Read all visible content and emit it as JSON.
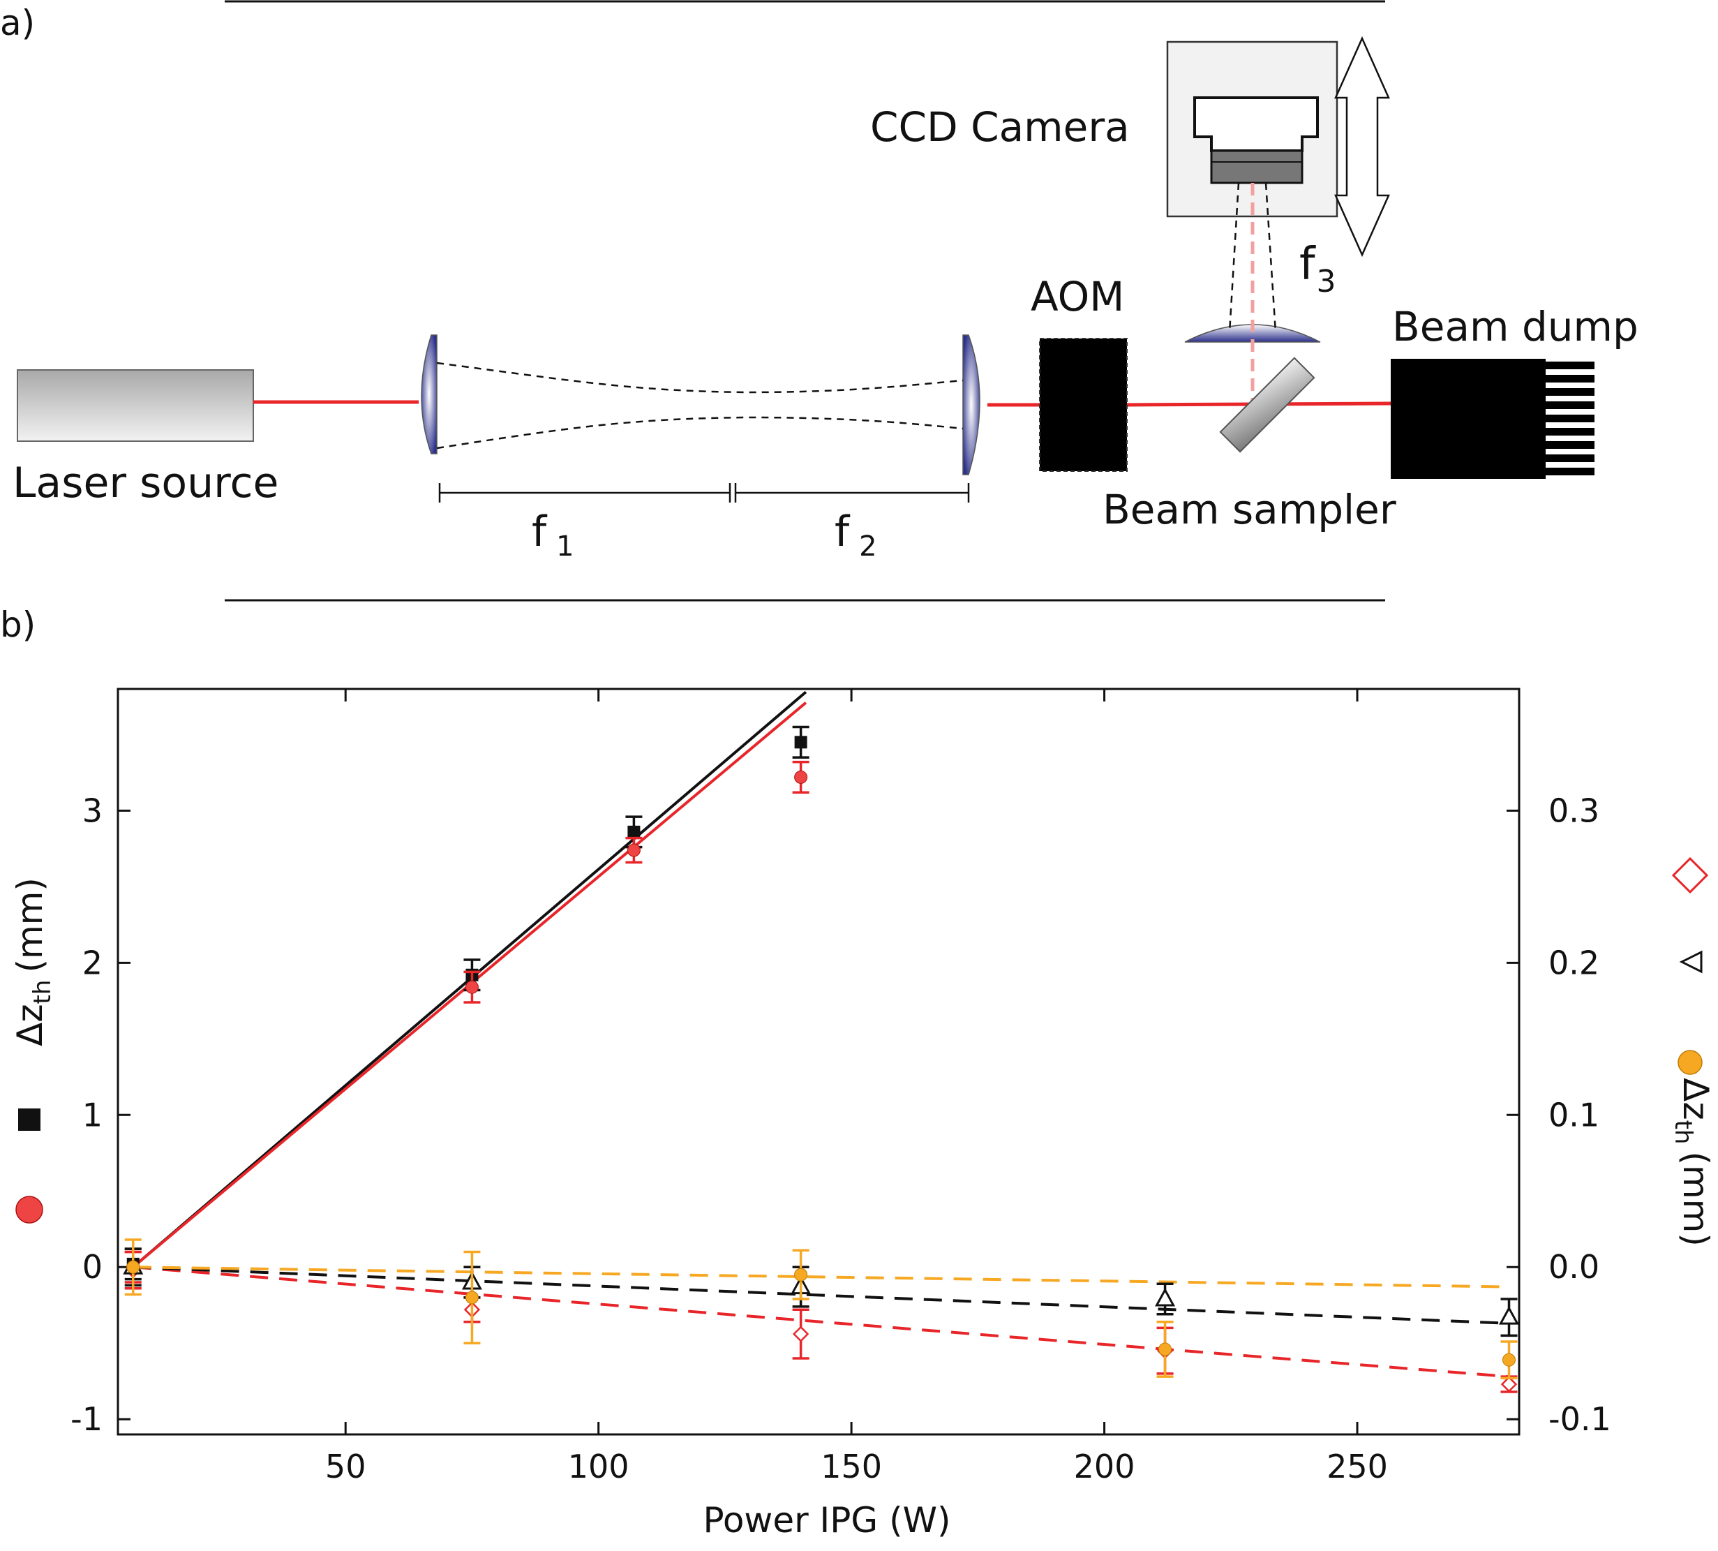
{
  "panel_a": {
    "label": "a)",
    "laser_source": "Laser source",
    "f1": "f",
    "f1_sub": "1",
    "f2": "f",
    "f2_sub": "2",
    "aom": "AOM",
    "ccd_camera": "CCD Camera",
    "f3": "f",
    "f3_sub": "3",
    "beam_sampler": "Beam sampler",
    "beam_dump": "Beam dump"
  },
  "panel_b": {
    "label": "b)"
  },
  "chart_data": {
    "type": "scatter",
    "xlabel": "Power IPG (W)",
    "ylabel_left": "Δz",
    "ylabel_left_sub": "th",
    "ylabel_left_unit": "(mm)",
    "ylabel_right": "Δz",
    "ylabel_right_sub": "th",
    "ylabel_right_unit": "(mm)",
    "xlim": [
      5,
      282
    ],
    "ylim_left": [
      -1.1,
      3.8
    ],
    "ylim_right": [
      -0.11,
      0.38
    ],
    "x_ticks": [
      "50",
      "100",
      "150",
      "200",
      "250"
    ],
    "x_tick_values": [
      50,
      100,
      150,
      200,
      250
    ],
    "y_left_ticks": [
      "-1",
      "0",
      "1",
      "2",
      "3"
    ],
    "y_left_tick_values": [
      -1,
      0,
      1,
      2,
      3
    ],
    "y_right_ticks": [
      "-0.1",
      "0.0",
      "0.1",
      "0.2",
      "0.3"
    ],
    "y_right_tick_values": [
      -0.1,
      0.0,
      0.1,
      0.2,
      0.3
    ],
    "colors": {
      "black": "#111111",
      "red": "#e8262a",
      "orange": "#f7a823",
      "marker_red_fill": "#ee4444"
    },
    "series": [
      {
        "axis": "left",
        "marker": "square",
        "color": "#111111",
        "points": [
          {
            "x": 8,
            "y": 0.02,
            "err": 0.1
          },
          {
            "x": 75,
            "y": 1.92,
            "err": 0.1
          },
          {
            "x": 107,
            "y": 2.86,
            "err": 0.1
          },
          {
            "x": 140,
            "y": 3.45,
            "err": 0.1
          }
        ],
        "fit": {
          "style": "solid",
          "x": [
            8,
            141
          ],
          "y": [
            0.0,
            3.78
          ]
        }
      },
      {
        "axis": "left",
        "marker": "circle",
        "color": "#e8262a",
        "points": [
          {
            "x": 8,
            "y": 0.0,
            "err": 0.1
          },
          {
            "x": 75,
            "y": 1.84,
            "err": 0.1
          },
          {
            "x": 107,
            "y": 2.74,
            "err": 0.08
          },
          {
            "x": 140,
            "y": 3.22,
            "err": 0.1
          }
        ],
        "fit": {
          "style": "solid",
          "x": [
            8,
            141
          ],
          "y": [
            0.0,
            3.71
          ]
        }
      },
      {
        "axis": "right",
        "marker": "diamond",
        "color": "#e8262a",
        "points": [
          {
            "x": 8,
            "y": -0.002,
            "err": 0.012
          },
          {
            "x": 75,
            "y": -0.028,
            "err": 0.008
          },
          {
            "x": 140,
            "y": -0.044,
            "err": 0.016
          },
          {
            "x": 212,
            "y": -0.055,
            "err": 0.015
          },
          {
            "x": 280,
            "y": -0.077,
            "err": 0.005
          }
        ],
        "fit": {
          "style": "dashed",
          "x": [
            8,
            280
          ],
          "y": [
            0.0,
            -0.072
          ]
        }
      },
      {
        "axis": "right",
        "marker": "triangle",
        "color": "#111111",
        "points": [
          {
            "x": 8,
            "y": 0.0,
            "err": 0.012
          },
          {
            "x": 75,
            "y": -0.01,
            "err": 0.01
          },
          {
            "x": 140,
            "y": -0.013,
            "err": 0.013
          },
          {
            "x": 212,
            "y": -0.021,
            "err": 0.01
          },
          {
            "x": 280,
            "y": -0.033,
            "err": 0.012
          }
        ],
        "fit": {
          "style": "dashed",
          "x": [
            8,
            280
          ],
          "y": [
            0.0,
            -0.037
          ]
        }
      },
      {
        "axis": "right",
        "marker": "circle",
        "color": "#f7a823",
        "points": [
          {
            "x": 8,
            "y": 0.0,
            "err": 0.018
          },
          {
            "x": 75,
            "y": -0.02,
            "err": 0.03
          },
          {
            "x": 140,
            "y": -0.005,
            "err": 0.016
          },
          {
            "x": 212,
            "y": -0.054,
            "err": 0.018
          },
          {
            "x": 280,
            "y": -0.061,
            "err": 0.012
          }
        ],
        "fit": {
          "style": "dashed",
          "x": [
            8,
            280
          ],
          "y": [
            0.0,
            -0.013
          ]
        }
      }
    ]
  }
}
